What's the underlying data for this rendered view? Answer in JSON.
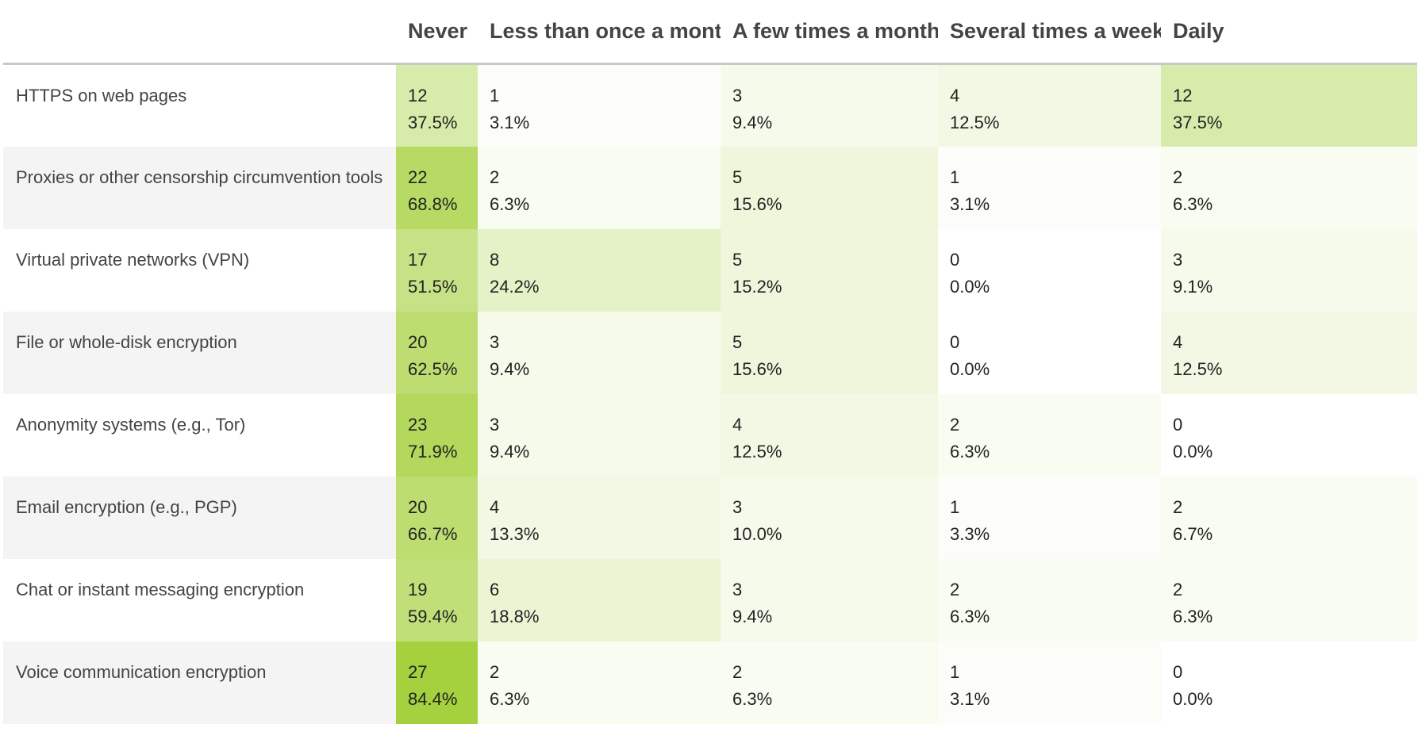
{
  "chart_data": {
    "type": "heatmap",
    "title": "",
    "xlabel": "",
    "ylabel": "",
    "columns": [
      "Never",
      "Less than once a month",
      "A few times a month",
      "Several times a week",
      "Daily"
    ],
    "rows": [
      {
        "label": "HTTPS on web pages",
        "counts": [
          12,
          1,
          3,
          4,
          12
        ],
        "percents": [
          "37.5%",
          "3.1%",
          "9.4%",
          "12.5%",
          "37.5%"
        ]
      },
      {
        "label": "Proxies or other censorship circumvention tools",
        "counts": [
          22,
          2,
          5,
          1,
          2
        ],
        "percents": [
          "68.8%",
          "6.3%",
          "15.6%",
          "3.1%",
          "6.3%"
        ]
      },
      {
        "label": "Virtual private networks (VPN)",
        "counts": [
          17,
          8,
          5,
          0,
          3
        ],
        "percents": [
          "51.5%",
          "24.2%",
          "15.2%",
          "0.0%",
          "9.1%"
        ]
      },
      {
        "label": "File or whole-disk encryption",
        "counts": [
          20,
          3,
          5,
          0,
          4
        ],
        "percents": [
          "62.5%",
          "9.4%",
          "15.6%",
          "0.0%",
          "12.5%"
        ]
      },
      {
        "label": "Anonymity systems (e.g., Tor)",
        "counts": [
          23,
          3,
          4,
          2,
          0
        ],
        "percents": [
          "71.9%",
          "9.4%",
          "12.5%",
          "6.3%",
          "0.0%"
        ]
      },
      {
        "label": "Email encryption (e.g., PGP)",
        "counts": [
          20,
          4,
          3,
          1,
          2
        ],
        "percents": [
          "66.7%",
          "13.3%",
          "10.0%",
          "3.3%",
          "6.7%"
        ]
      },
      {
        "label": "Chat or instant messaging encryption",
        "counts": [
          19,
          6,
          3,
          2,
          2
        ],
        "percents": [
          "59.4%",
          "18.8%",
          "9.4%",
          "6.3%",
          "6.3%"
        ]
      },
      {
        "label": "Voice communication encryption",
        "counts": [
          27,
          2,
          2,
          1,
          0
        ],
        "percents": [
          "84.4%",
          "6.3%",
          "6.3%",
          "3.1%",
          "0.0%"
        ]
      }
    ],
    "color_scale": {
      "low": "#ffffff",
      "high": "#a6d13f"
    }
  }
}
